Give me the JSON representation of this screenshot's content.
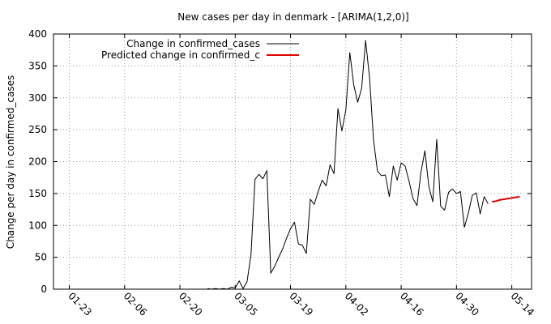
{
  "chart_data": {
    "type": "line",
    "title": "New cases per day in denmark -  [ARIMA(1,2,0)]",
    "ylabel": "Change per day in confirmed_cases",
    "xlabel": "",
    "ylim": [
      0,
      400
    ],
    "xlim": [
      "2020-01-19",
      "2020-05-19"
    ],
    "y_ticks": [
      0,
      50,
      100,
      150,
      200,
      250,
      300,
      350,
      400
    ],
    "x_ticks": [
      {
        "date": "2020-01-23",
        "label": "01-23"
      },
      {
        "date": "2020-02-06",
        "label": "02-06"
      },
      {
        "date": "2020-02-20",
        "label": "02-20"
      },
      {
        "date": "2020-03-05",
        "label": "03-05"
      },
      {
        "date": "2020-03-19",
        "label": "03-19"
      },
      {
        "date": "2020-04-02",
        "label": "04-02"
      },
      {
        "date": "2020-04-16",
        "label": "04-16"
      },
      {
        "date": "2020-04-30",
        "label": "04-30"
      },
      {
        "date": "2020-05-14",
        "label": "05-14"
      }
    ],
    "grid": true,
    "legend_position": "top-left",
    "series": [
      {
        "name": "Change in confirmed_cases",
        "color": "#000000",
        "points": [
          [
            "2020-02-27",
            1
          ],
          [
            "2020-02-28",
            0
          ],
          [
            "2020-02-29",
            1
          ],
          [
            "2020-03-01",
            0
          ],
          [
            "2020-03-02",
            1
          ],
          [
            "2020-03-03",
            0
          ],
          [
            "2020-03-04",
            3
          ],
          [
            "2020-03-05",
            2
          ],
          [
            "2020-03-06",
            13
          ],
          [
            "2020-03-07",
            1
          ],
          [
            "2020-03-08",
            12
          ],
          [
            "2020-03-09",
            55
          ],
          [
            "2020-03-10",
            172
          ],
          [
            "2020-03-11",
            180
          ],
          [
            "2020-03-12",
            173
          ],
          [
            "2020-03-13",
            186
          ],
          [
            "2020-03-14",
            25
          ],
          [
            "2020-03-15",
            36
          ],
          [
            "2020-03-16",
            50
          ],
          [
            "2020-03-17",
            63
          ],
          [
            "2020-03-18",
            80
          ],
          [
            "2020-03-19",
            95
          ],
          [
            "2020-03-20",
            105
          ],
          [
            "2020-03-21",
            71
          ],
          [
            "2020-03-22",
            69
          ],
          [
            "2020-03-23",
            56
          ],
          [
            "2020-03-24",
            141
          ],
          [
            "2020-03-25",
            133
          ],
          [
            "2020-03-26",
            153
          ],
          [
            "2020-03-27",
            171
          ],
          [
            "2020-03-28",
            162
          ],
          [
            "2020-03-29",
            195
          ],
          [
            "2020-03-30",
            181
          ],
          [
            "2020-03-31",
            283
          ],
          [
            "2020-04-01",
            248
          ],
          [
            "2020-04-02",
            281
          ],
          [
            "2020-04-03",
            371
          ],
          [
            "2020-04-04",
            320
          ],
          [
            "2020-04-05",
            293
          ],
          [
            "2020-04-06",
            315
          ],
          [
            "2020-04-07",
            390
          ],
          [
            "2020-04-08",
            331
          ],
          [
            "2020-04-09",
            234
          ],
          [
            "2020-04-10",
            185
          ],
          [
            "2020-04-11",
            178
          ],
          [
            "2020-04-12",
            179
          ],
          [
            "2020-04-13",
            145
          ],
          [
            "2020-04-14",
            193
          ],
          [
            "2020-04-15",
            171
          ],
          [
            "2020-04-16",
            198
          ],
          [
            "2020-04-17",
            193
          ],
          [
            "2020-04-18",
            169
          ],
          [
            "2020-04-19",
            142
          ],
          [
            "2020-04-20",
            131
          ],
          [
            "2020-04-21",
            183
          ],
          [
            "2020-04-22",
            217
          ],
          [
            "2020-04-23",
            161
          ],
          [
            "2020-04-24",
            137
          ],
          [
            "2020-04-25",
            235
          ],
          [
            "2020-04-26",
            130
          ],
          [
            "2020-04-27",
            124
          ],
          [
            "2020-04-28",
            152
          ],
          [
            "2020-04-29",
            157
          ],
          [
            "2020-04-30",
            150
          ],
          [
            "2020-05-01",
            153
          ],
          [
            "2020-05-02",
            97
          ],
          [
            "2020-05-03",
            119
          ],
          [
            "2020-05-04",
            147
          ],
          [
            "2020-05-05",
            151
          ],
          [
            "2020-05-06",
            118
          ],
          [
            "2020-05-07",
            145
          ],
          [
            "2020-05-08",
            134
          ]
        ]
      },
      {
        "name": "Predicted change in confirmed_c",
        "color": "#e00000",
        "points": [
          [
            "2020-05-09",
            137
          ],
          [
            "2020-05-10",
            138
          ],
          [
            "2020-05-11",
            140
          ],
          [
            "2020-05-12",
            141
          ],
          [
            "2020-05-13",
            142
          ],
          [
            "2020-05-14",
            143
          ],
          [
            "2020-05-15",
            144
          ],
          [
            "2020-05-16",
            145
          ]
        ]
      }
    ]
  }
}
